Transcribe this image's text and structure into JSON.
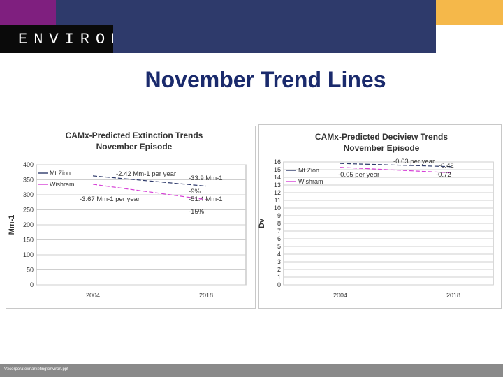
{
  "header": {
    "logo_text": "ENVIRON",
    "colors": {
      "purple": "#7f1f7f",
      "navy": "#2e3a6b",
      "orange": "#f5b84a",
      "black": "#0a0a0a"
    }
  },
  "slide": {
    "title": "November Trend Lines"
  },
  "footer": {
    "path_text": "V:\\corporate\\marketing\\environ.ppt"
  },
  "chart_data": [
    {
      "type": "line",
      "title": "CAMx-Predicted Extinction Trends",
      "subtitle": "November Episode",
      "xlabel": "",
      "ylabel": "Mm-1",
      "categories": [
        "2004",
        "2018"
      ],
      "ylim": [
        0,
        400
      ],
      "yticks": [
        0,
        50,
        100,
        150,
        200,
        250,
        300,
        350,
        400
      ],
      "grid": true,
      "legend": "top-left",
      "series": [
        {
          "name": "Mt Zion",
          "color": "#2e3a6b",
          "values": [
            363,
            329
          ]
        },
        {
          "name": "Wishram",
          "color": "#d63fd6",
          "values": [
            335,
            284
          ]
        }
      ],
      "annotations": [
        {
          "text": "-2.42 Mm-1 per year"
        },
        {
          "text": "-33.9 Mm-1"
        },
        {
          "text": "-9%"
        },
        {
          "text": "-3.67 Mm-1 per year"
        },
        {
          "text": "-51.4 Mm-1"
        },
        {
          "text": "-15%"
        }
      ]
    },
    {
      "type": "line",
      "title": "CAMx-Predicted Deciview Trends",
      "subtitle": "November Episode",
      "xlabel": "",
      "ylabel": "Dv",
      "categories": [
        "2004",
        "2018"
      ],
      "ylim": [
        0,
        16
      ],
      "yticks": [
        0,
        1,
        2,
        3,
        4,
        5,
        6,
        7,
        8,
        9,
        10,
        11,
        12,
        13,
        14,
        15,
        16
      ],
      "grid": true,
      "legend": "top-left",
      "series": [
        {
          "name": "Mt Zion",
          "color": "#2e3a6b",
          "values": [
            15.8,
            15.38
          ]
        },
        {
          "name": "Wishram",
          "color": "#d63fd6",
          "values": [
            15.3,
            14.58
          ]
        }
      ],
      "annotations": [
        {
          "text": "-0.03 per year"
        },
        {
          "text": "-0.42"
        },
        {
          "text": "-0.05 per year"
        },
        {
          "text": "-0.72"
        }
      ]
    }
  ]
}
